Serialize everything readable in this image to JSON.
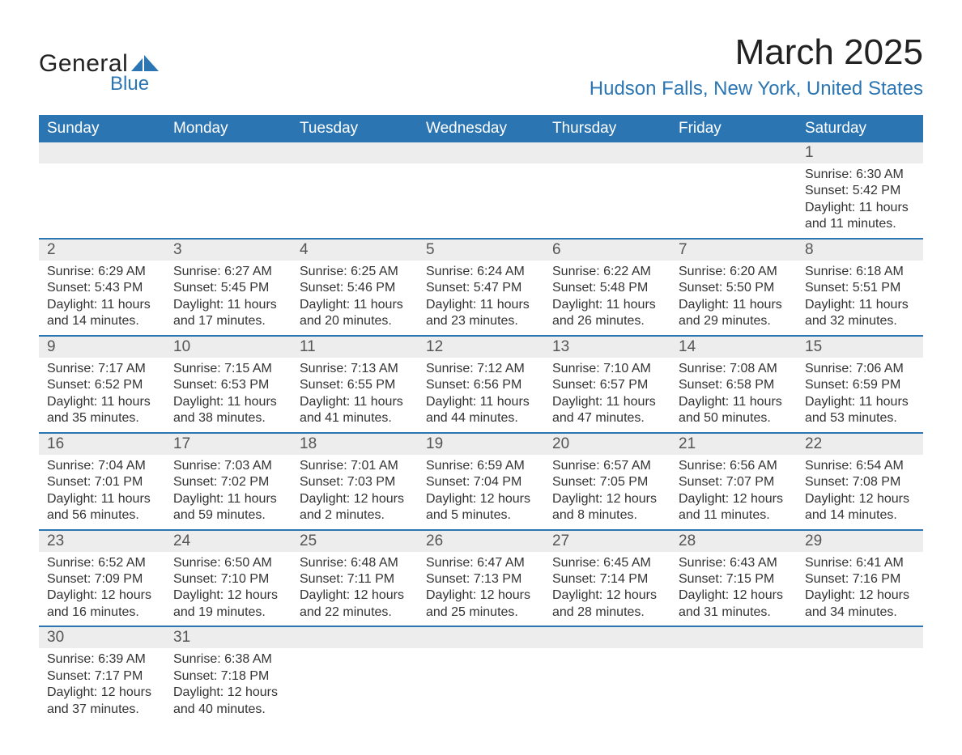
{
  "logo": {
    "text_general": "General",
    "text_blue": "Blue",
    "shape_color": "#2b75b3"
  },
  "header": {
    "month_title": "March 2025",
    "location": "Hudson Falls, New York, United States"
  },
  "colors": {
    "header_bg": "#2b75b3",
    "header_text": "#ffffff",
    "daynum_bg": "#ededed",
    "daynum_text": "#555555",
    "detail_text": "#333333",
    "row_divider": "#2b75b3",
    "page_bg": "#ffffff",
    "accent": "#2b75b3"
  },
  "typography": {
    "month_title_fontsize": 44,
    "location_fontsize": 24,
    "weekday_fontsize": 19,
    "daynum_fontsize": 19,
    "detail_fontsize": 16,
    "font_family": "Arial"
  },
  "calendar": {
    "type": "table",
    "columns": [
      "Sunday",
      "Monday",
      "Tuesday",
      "Wednesday",
      "Thursday",
      "Friday",
      "Saturday"
    ],
    "weeks": [
      [
        null,
        null,
        null,
        null,
        null,
        null,
        {
          "day": "1",
          "sunrise": "Sunrise: 6:30 AM",
          "sunset": "Sunset: 5:42 PM",
          "daylight1": "Daylight: 11 hours",
          "daylight2": "and 11 minutes."
        }
      ],
      [
        {
          "day": "2",
          "sunrise": "Sunrise: 6:29 AM",
          "sunset": "Sunset: 5:43 PM",
          "daylight1": "Daylight: 11 hours",
          "daylight2": "and 14 minutes."
        },
        {
          "day": "3",
          "sunrise": "Sunrise: 6:27 AM",
          "sunset": "Sunset: 5:45 PM",
          "daylight1": "Daylight: 11 hours",
          "daylight2": "and 17 minutes."
        },
        {
          "day": "4",
          "sunrise": "Sunrise: 6:25 AM",
          "sunset": "Sunset: 5:46 PM",
          "daylight1": "Daylight: 11 hours",
          "daylight2": "and 20 minutes."
        },
        {
          "day": "5",
          "sunrise": "Sunrise: 6:24 AM",
          "sunset": "Sunset: 5:47 PM",
          "daylight1": "Daylight: 11 hours",
          "daylight2": "and 23 minutes."
        },
        {
          "day": "6",
          "sunrise": "Sunrise: 6:22 AM",
          "sunset": "Sunset: 5:48 PM",
          "daylight1": "Daylight: 11 hours",
          "daylight2": "and 26 minutes."
        },
        {
          "day": "7",
          "sunrise": "Sunrise: 6:20 AM",
          "sunset": "Sunset: 5:50 PM",
          "daylight1": "Daylight: 11 hours",
          "daylight2": "and 29 minutes."
        },
        {
          "day": "8",
          "sunrise": "Sunrise: 6:18 AM",
          "sunset": "Sunset: 5:51 PM",
          "daylight1": "Daylight: 11 hours",
          "daylight2": "and 32 minutes."
        }
      ],
      [
        {
          "day": "9",
          "sunrise": "Sunrise: 7:17 AM",
          "sunset": "Sunset: 6:52 PM",
          "daylight1": "Daylight: 11 hours",
          "daylight2": "and 35 minutes."
        },
        {
          "day": "10",
          "sunrise": "Sunrise: 7:15 AM",
          "sunset": "Sunset: 6:53 PM",
          "daylight1": "Daylight: 11 hours",
          "daylight2": "and 38 minutes."
        },
        {
          "day": "11",
          "sunrise": "Sunrise: 7:13 AM",
          "sunset": "Sunset: 6:55 PM",
          "daylight1": "Daylight: 11 hours",
          "daylight2": "and 41 minutes."
        },
        {
          "day": "12",
          "sunrise": "Sunrise: 7:12 AM",
          "sunset": "Sunset: 6:56 PM",
          "daylight1": "Daylight: 11 hours",
          "daylight2": "and 44 minutes."
        },
        {
          "day": "13",
          "sunrise": "Sunrise: 7:10 AM",
          "sunset": "Sunset: 6:57 PM",
          "daylight1": "Daylight: 11 hours",
          "daylight2": "and 47 minutes."
        },
        {
          "day": "14",
          "sunrise": "Sunrise: 7:08 AM",
          "sunset": "Sunset: 6:58 PM",
          "daylight1": "Daylight: 11 hours",
          "daylight2": "and 50 minutes."
        },
        {
          "day": "15",
          "sunrise": "Sunrise: 7:06 AM",
          "sunset": "Sunset: 6:59 PM",
          "daylight1": "Daylight: 11 hours",
          "daylight2": "and 53 minutes."
        }
      ],
      [
        {
          "day": "16",
          "sunrise": "Sunrise: 7:04 AM",
          "sunset": "Sunset: 7:01 PM",
          "daylight1": "Daylight: 11 hours",
          "daylight2": "and 56 minutes."
        },
        {
          "day": "17",
          "sunrise": "Sunrise: 7:03 AM",
          "sunset": "Sunset: 7:02 PM",
          "daylight1": "Daylight: 11 hours",
          "daylight2": "and 59 minutes."
        },
        {
          "day": "18",
          "sunrise": "Sunrise: 7:01 AM",
          "sunset": "Sunset: 7:03 PM",
          "daylight1": "Daylight: 12 hours",
          "daylight2": "and 2 minutes."
        },
        {
          "day": "19",
          "sunrise": "Sunrise: 6:59 AM",
          "sunset": "Sunset: 7:04 PM",
          "daylight1": "Daylight: 12 hours",
          "daylight2": "and 5 minutes."
        },
        {
          "day": "20",
          "sunrise": "Sunrise: 6:57 AM",
          "sunset": "Sunset: 7:05 PM",
          "daylight1": "Daylight: 12 hours",
          "daylight2": "and 8 minutes."
        },
        {
          "day": "21",
          "sunrise": "Sunrise: 6:56 AM",
          "sunset": "Sunset: 7:07 PM",
          "daylight1": "Daylight: 12 hours",
          "daylight2": "and 11 minutes."
        },
        {
          "day": "22",
          "sunrise": "Sunrise: 6:54 AM",
          "sunset": "Sunset: 7:08 PM",
          "daylight1": "Daylight: 12 hours",
          "daylight2": "and 14 minutes."
        }
      ],
      [
        {
          "day": "23",
          "sunrise": "Sunrise: 6:52 AM",
          "sunset": "Sunset: 7:09 PM",
          "daylight1": "Daylight: 12 hours",
          "daylight2": "and 16 minutes."
        },
        {
          "day": "24",
          "sunrise": "Sunrise: 6:50 AM",
          "sunset": "Sunset: 7:10 PM",
          "daylight1": "Daylight: 12 hours",
          "daylight2": "and 19 minutes."
        },
        {
          "day": "25",
          "sunrise": "Sunrise: 6:48 AM",
          "sunset": "Sunset: 7:11 PM",
          "daylight1": "Daylight: 12 hours",
          "daylight2": "and 22 minutes."
        },
        {
          "day": "26",
          "sunrise": "Sunrise: 6:47 AM",
          "sunset": "Sunset: 7:13 PM",
          "daylight1": "Daylight: 12 hours",
          "daylight2": "and 25 minutes."
        },
        {
          "day": "27",
          "sunrise": "Sunrise: 6:45 AM",
          "sunset": "Sunset: 7:14 PM",
          "daylight1": "Daylight: 12 hours",
          "daylight2": "and 28 minutes."
        },
        {
          "day": "28",
          "sunrise": "Sunrise: 6:43 AM",
          "sunset": "Sunset: 7:15 PM",
          "daylight1": "Daylight: 12 hours",
          "daylight2": "and 31 minutes."
        },
        {
          "day": "29",
          "sunrise": "Sunrise: 6:41 AM",
          "sunset": "Sunset: 7:16 PM",
          "daylight1": "Daylight: 12 hours",
          "daylight2": "and 34 minutes."
        }
      ],
      [
        {
          "day": "30",
          "sunrise": "Sunrise: 6:39 AM",
          "sunset": "Sunset: 7:17 PM",
          "daylight1": "Daylight: 12 hours",
          "daylight2": "and 37 minutes."
        },
        {
          "day": "31",
          "sunrise": "Sunrise: 6:38 AM",
          "sunset": "Sunset: 7:18 PM",
          "daylight1": "Daylight: 12 hours",
          "daylight2": "and 40 minutes."
        },
        null,
        null,
        null,
        null,
        null
      ]
    ]
  }
}
